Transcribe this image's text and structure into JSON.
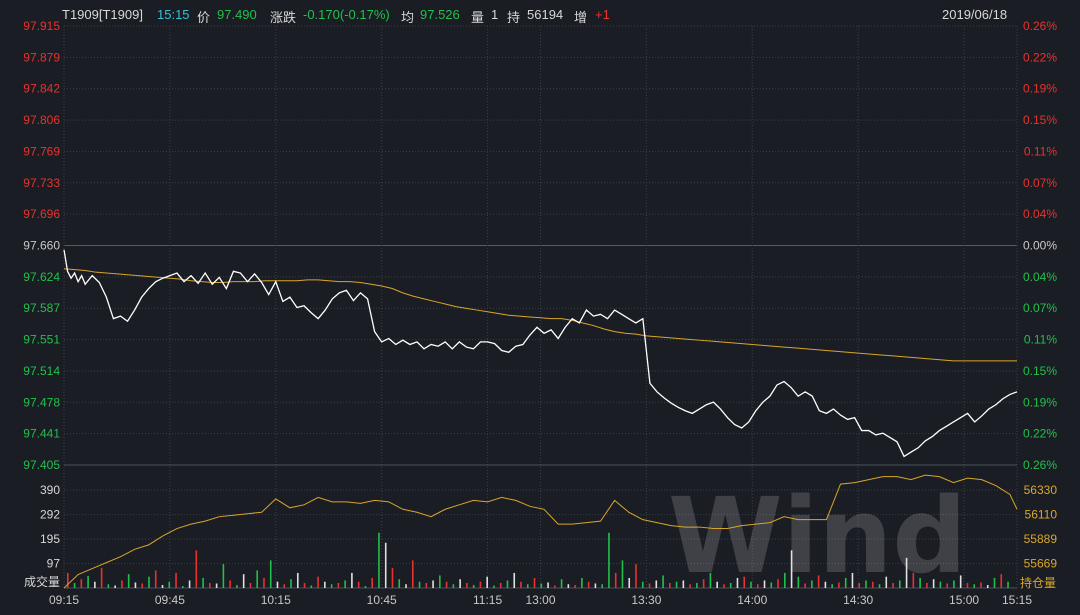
{
  "header": {
    "symbol": "T1909[T1909]",
    "time": "15:15",
    "price_label": "价",
    "price": "97.490",
    "change_label": "涨跌",
    "change": "-0.170(-0.17%)",
    "avg_label": "均",
    "avg": "97.526",
    "volume_label": "量",
    "volume": "1",
    "oi_label": "持",
    "oi": "56194",
    "oi_change_label": "增",
    "oi_change": "+1",
    "date": "2019/06/18"
  },
  "panels": {
    "volume_label": "成交量",
    "oi_label": "持仓量"
  },
  "watermark": "Wind",
  "colors": {
    "background": "#1b1d24",
    "price_line": "#ffffff",
    "avg_line": "#d9a62a",
    "up": "#e8322e",
    "down": "#21c04a",
    "neutral": "#e0e0e0",
    "grid": "#3b3f48",
    "cyan": "#35c0d8"
  },
  "chart_data": [
    {
      "type": "line",
      "name": "price",
      "prev_close": 97.66,
      "ylim": [
        97.405,
        97.915
      ],
      "price_ticks": [
        "97.915",
        "97.879",
        "97.842",
        "97.806",
        "97.769",
        "97.733",
        "97.696",
        "97.660",
        "97.624",
        "97.587",
        "97.551",
        "97.514",
        "97.478",
        "97.441",
        "97.405"
      ],
      "pct_ticks": [
        "0.26%",
        "0.22%",
        "0.19%",
        "0.15%",
        "0.11%",
        "0.07%",
        "0.04%",
        "0.00%",
        "0.04%",
        "0.07%",
        "0.11%",
        "0.15%",
        "0.19%",
        "0.22%",
        "0.26%"
      ],
      "x_ticks": [
        "09:15",
        "09:45",
        "10:15",
        "10:45",
        "11:15",
        "13:00",
        "13:30",
        "14:00",
        "14:30",
        "15:00",
        "15:15"
      ],
      "x": [
        0,
        1,
        2,
        3,
        4,
        5,
        6,
        8,
        10,
        12,
        14,
        16,
        18,
        20,
        22,
        24,
        26,
        28,
        30,
        32,
        34,
        36,
        38,
        40,
        42,
        44,
        46,
        48,
        50,
        52,
        54,
        56,
        58,
        60,
        62,
        64,
        66,
        68,
        70,
        72,
        74,
        76,
        78,
        80,
        82,
        84,
        86,
        88,
        90,
        92,
        94,
        96,
        98,
        100,
        102,
        104,
        106,
        108,
        110,
        112,
        114,
        116,
        118,
        120,
        122,
        124,
        126,
        128,
        130,
        132,
        134,
        136,
        138,
        140,
        142,
        144,
        146,
        148,
        150,
        152,
        154,
        156,
        158,
        160,
        162,
        164,
        166,
        168,
        170,
        172,
        174,
        176,
        178,
        180,
        182,
        184,
        186,
        188,
        190,
        192,
        194,
        196,
        198,
        200,
        202,
        204,
        206,
        208,
        210,
        212,
        214,
        216,
        218,
        220,
        222,
        224,
        226,
        228,
        230,
        232,
        234,
        236,
        238,
        240,
        242,
        244,
        246,
        248,
        250,
        252,
        254,
        256,
        258,
        260,
        262,
        264,
        266,
        268,
        270
      ],
      "price": [
        97.655,
        97.63,
        97.622,
        97.628,
        97.618,
        97.625,
        97.615,
        97.625,
        97.617,
        97.6,
        97.575,
        97.578,
        97.572,
        97.585,
        97.6,
        97.61,
        97.618,
        97.622,
        97.625,
        97.628,
        97.618,
        97.625,
        97.616,
        97.628,
        97.615,
        97.623,
        97.61,
        97.63,
        97.628,
        97.618,
        97.627,
        97.617,
        97.603,
        97.618,
        97.595,
        97.6,
        97.588,
        97.59,
        97.582,
        97.575,
        97.585,
        97.598,
        97.605,
        97.608,
        97.596,
        97.605,
        97.598,
        97.56,
        97.548,
        97.552,
        97.545,
        97.55,
        97.545,
        97.548,
        97.54,
        97.545,
        97.543,
        97.548,
        97.54,
        97.548,
        97.542,
        97.54,
        97.548,
        97.548,
        97.546,
        97.538,
        97.536,
        97.543,
        97.545,
        97.556,
        97.565,
        97.558,
        97.562,
        97.552,
        97.565,
        97.575,
        97.57,
        97.585,
        97.578,
        97.58,
        97.575,
        97.585,
        97.58,
        97.575,
        97.57,
        97.575,
        97.5,
        97.49,
        97.483,
        97.477,
        97.472,
        97.468,
        97.465,
        97.47,
        97.475,
        97.478,
        97.47,
        97.46,
        97.452,
        97.448,
        97.455,
        97.468,
        97.478,
        97.485,
        97.498,
        97.502,
        97.495,
        97.485,
        97.49,
        97.485,
        97.468,
        97.465,
        97.47,
        97.463,
        97.458,
        97.46,
        97.445,
        97.445,
        97.44,
        97.442,
        97.437,
        97.432,
        97.415,
        97.42,
        97.425,
        97.433,
        97.438,
        97.445,
        97.45,
        97.455,
        97.46,
        97.465,
        97.455,
        97.462,
        97.47,
        97.475,
        97.482,
        97.487,
        97.49
      ],
      "avg": [
        97.633,
        97.632,
        97.631,
        97.629,
        97.628,
        97.627,
        97.626,
        97.625,
        97.624,
        97.623,
        97.622,
        97.621,
        97.619,
        97.618,
        97.617,
        97.617,
        97.618,
        97.618,
        97.618,
        97.619,
        97.619,
        97.619,
        97.619,
        97.62,
        97.62,
        97.619,
        97.618,
        97.618,
        97.617,
        97.615,
        97.613,
        97.61,
        97.605,
        97.601,
        97.598,
        97.595,
        97.592,
        97.589,
        97.587,
        97.585,
        97.583,
        97.581,
        97.579,
        97.578,
        97.577,
        97.576,
        97.575,
        97.575,
        97.573,
        97.57,
        97.567,
        97.563,
        97.56,
        97.558,
        97.557,
        97.555,
        97.554,
        97.553,
        97.552,
        97.551,
        97.55,
        97.549,
        97.548,
        97.547,
        97.546,
        97.545,
        97.544,
        97.543,
        97.542,
        97.541,
        97.54,
        97.539,
        97.538,
        97.537,
        97.536,
        97.535,
        97.534,
        97.533,
        97.532,
        97.531,
        97.53,
        97.529,
        97.528,
        97.527,
        97.526,
        97.526
      ],
      "avg_x": [
        0,
        3,
        6,
        9,
        12,
        15,
        18,
        21,
        24,
        27,
        30,
        33,
        36,
        39,
        42,
        45,
        48,
        51,
        54,
        57,
        60,
        63,
        66,
        69,
        72,
        75,
        78,
        81,
        84,
        87,
        90,
        93,
        96,
        99,
        102,
        105,
        108,
        111,
        114,
        117,
        120,
        123,
        126,
        129,
        132,
        135,
        138,
        141,
        144,
        147,
        150,
        153,
        156,
        159,
        162,
        165,
        168,
        171,
        174,
        177,
        180,
        183,
        186,
        189,
        192,
        195,
        198,
        201,
        204,
        207,
        210,
        213,
        216,
        219,
        222,
        225,
        228,
        231,
        234,
        237,
        240,
        243,
        246,
        249,
        252,
        270
      ]
    },
    {
      "type": "bar",
      "name": "volume",
      "y_ticks": [
        "390",
        "292",
        "195",
        "97"
      ],
      "ylim": [
        0,
        390
      ],
      "values": [
        60,
        20,
        35,
        48,
        25,
        80,
        15,
        10,
        30,
        55,
        22,
        18,
        45,
        70,
        12,
        25,
        60,
        8,
        30,
        150,
        40,
        20,
        18,
        95,
        30,
        12,
        55,
        20,
        70,
        40,
        110,
        25,
        15,
        35,
        60,
        20,
        10,
        45,
        25,
        15,
        20,
        30,
        60,
        25,
        8,
        40,
        220,
        180,
        80,
        35,
        15,
        110,
        25,
        20,
        30,
        50,
        25,
        15,
        35,
        20,
        12,
        25,
        45,
        10,
        20,
        30,
        60,
        25,
        15,
        40,
        18,
        22,
        10,
        35,
        15,
        12,
        40,
        25,
        18,
        15,
        220,
        60,
        110,
        40,
        95,
        25,
        18,
        30,
        50,
        20,
        25,
        30,
        15,
        20,
        35,
        60,
        25,
        15,
        20,
        40,
        45,
        25,
        15,
        30,
        22,
        35,
        60,
        150,
        45,
        18,
        30,
        50,
        25,
        15,
        22,
        40,
        60,
        20,
        30,
        25,
        15,
        45,
        20,
        30,
        120,
        60,
        40,
        20,
        35,
        25,
        18,
        30,
        50,
        20,
        15,
        22,
        12,
        40,
        55,
        25
      ],
      "colors": [
        "u",
        "d",
        "u",
        "d",
        "n",
        "u",
        "d",
        "n",
        "u",
        "d",
        "n",
        "u",
        "d",
        "u",
        "n",
        "d",
        "u",
        "d",
        "n",
        "u",
        "d",
        "u",
        "n",
        "d",
        "u",
        "d",
        "n",
        "u",
        "d",
        "u",
        "d",
        "n",
        "u",
        "d",
        "n",
        "u",
        "d",
        "u",
        "n",
        "d",
        "u",
        "d",
        "n",
        "u",
        "d",
        "u",
        "d",
        "n",
        "u",
        "d",
        "n",
        "u",
        "d",
        "u",
        "n",
        "d",
        "u",
        "d",
        "n",
        "u",
        "d",
        "u",
        "n",
        "d",
        "u",
        "d",
        "n",
        "u",
        "d",
        "u",
        "d",
        "n",
        "u",
        "d",
        "n",
        "u",
        "d",
        "u",
        "n",
        "d",
        "d",
        "u",
        "d",
        "n",
        "u",
        "d",
        "u",
        "n",
        "d",
        "u",
        "d",
        "n",
        "u",
        "d",
        "u",
        "d",
        "n",
        "u",
        "d",
        "n",
        "u",
        "d",
        "u",
        "n",
        "d",
        "u",
        "d",
        "n",
        "d",
        "u",
        "d",
        "u",
        "n",
        "d",
        "u",
        "d",
        "n",
        "u",
        "d",
        "u",
        "d",
        "n",
        "u",
        "d",
        "n",
        "u",
        "d",
        "u",
        "n",
        "d",
        "u",
        "d",
        "n",
        "u",
        "d",
        "u",
        "n",
        "d",
        "u",
        "d"
      ]
    },
    {
      "type": "line",
      "name": "open_interest",
      "y_ticks": [
        "56330",
        "56110",
        "55889",
        "55669"
      ],
      "ylim": [
        55669,
        56330
      ],
      "x": [
        0,
        4,
        8,
        12,
        16,
        20,
        24,
        28,
        32,
        36,
        40,
        44,
        48,
        52,
        56,
        60,
        64,
        68,
        72,
        76,
        80,
        84,
        88,
        92,
        96,
        100,
        104,
        108,
        112,
        116,
        120,
        124,
        128,
        132,
        136,
        140,
        144,
        148,
        152,
        156,
        160,
        164,
        168,
        172,
        176,
        180,
        184,
        188,
        192,
        196,
        200,
        204,
        208,
        212,
        216,
        220,
        224,
        228,
        232,
        236,
        240,
        244,
        248,
        252,
        256,
        260,
        264,
        268,
        270
      ],
      "values": [
        55669,
        55760,
        55800,
        55840,
        55880,
        55930,
        55960,
        56020,
        56070,
        56100,
        56120,
        56150,
        56160,
        56170,
        56180,
        56270,
        56210,
        56230,
        56280,
        56250,
        56250,
        56240,
        56260,
        56250,
        56200,
        56180,
        56150,
        56200,
        56230,
        56260,
        56250,
        56280,
        56260,
        56220,
        56200,
        56100,
        56100,
        56110,
        56120,
        56260,
        56180,
        56130,
        56110,
        56090,
        56080,
        56080,
        56070,
        56070,
        56090,
        56100,
        56110,
        56150,
        56130,
        56130,
        56130,
        56370,
        56380,
        56400,
        56420,
        56420,
        56400,
        56430,
        56420,
        56380,
        56410,
        56400,
        56360,
        56300,
        56200
      ]
    }
  ]
}
